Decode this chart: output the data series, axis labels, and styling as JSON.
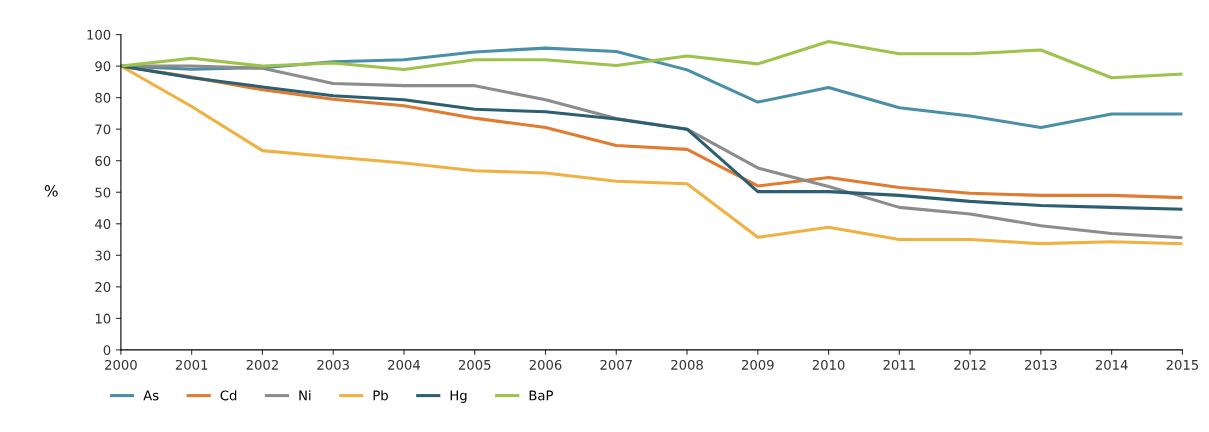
{
  "chart_data": {
    "type": "line",
    "ylabel": "%",
    "x": [
      2000,
      2001,
      2002,
      2003,
      2004,
      2005,
      2006,
      2007,
      2008,
      2009,
      2010,
      2011,
      2012,
      2013,
      2014,
      2015
    ],
    "xlim": [
      2000,
      2015
    ],
    "xticks": [
      2000,
      2001,
      2002,
      2003,
      2004,
      2005,
      2006,
      2007,
      2008,
      2009,
      2010,
      2011,
      2012,
      2013,
      2014,
      2015
    ],
    "ylim": [
      0,
      100
    ],
    "yticks": [
      0,
      10,
      20,
      30,
      40,
      50,
      60,
      70,
      80,
      90,
      100
    ],
    "grid": false,
    "legend": "bottom left",
    "marker": "none",
    "line_style": "solid",
    "series": [
      {
        "name": "As",
        "color": "#4a8fa8",
        "values": [
          90,
          89,
          89.5,
          91.4,
          92,
          94.5,
          95.7,
          94.6,
          88.8,
          78.6,
          83.2,
          76.8,
          74.2,
          70.5,
          74.8,
          74.8
        ]
      },
      {
        "name": "Cd",
        "color": "#e07b30",
        "values": [
          90,
          86.5,
          82.5,
          79.5,
          77.4,
          73.5,
          70.5,
          64.8,
          63.6,
          52,
          54.7,
          51.5,
          49.7,
          49,
          49,
          48.3
        ]
      },
      {
        "name": "Ni",
        "color": "#8c8c8c",
        "values": [
          90,
          90,
          89.3,
          84.5,
          83.8,
          83.8,
          79.3,
          73.4,
          70,
          57.7,
          51.8,
          45.2,
          43.1,
          39.4,
          36.9,
          35.6
        ]
      },
      {
        "name": "Pb",
        "color": "#f0b142",
        "values": [
          90,
          77.2,
          63.2,
          61.2,
          59.3,
          56.8,
          56.1,
          53.5,
          52.7,
          35.7,
          38.9,
          35,
          35,
          33.7,
          34.3,
          33.7
        ]
      },
      {
        "name": "Hg",
        "color": "#2c5f72",
        "values": [
          90,
          86.3,
          83.4,
          80.6,
          79.3,
          76.3,
          75.5,
          73.2,
          70,
          50.2,
          50.2,
          49,
          47.1,
          45.8,
          45.2,
          44.6
        ]
      },
      {
        "name": "BaP",
        "color": "#9dc34a",
        "values": [
          90,
          92.5,
          90,
          91,
          88.9,
          92,
          92,
          90.2,
          93.2,
          90.7,
          97.8,
          93.9,
          93.9,
          95.1,
          86.3,
          87.5
        ]
      }
    ]
  }
}
